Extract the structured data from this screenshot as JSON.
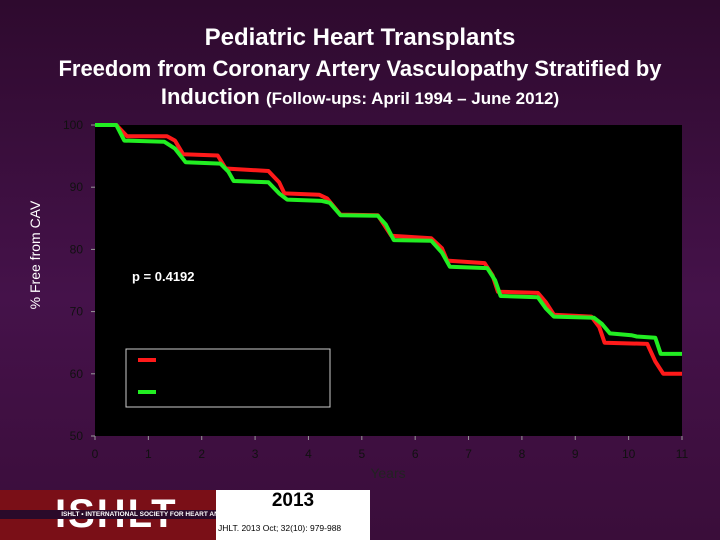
{
  "header": {
    "title": "Pediatric Heart Transplants",
    "subtitle_line1": "Freedom from Coronary Artery Vasculopathy Stratified by",
    "subtitle_line2_main": "Induction",
    "subtitle_line2_small": "(Follow-ups: April 1994 – June 2012)"
  },
  "chart_data": {
    "type": "line",
    "title": "",
    "xlabel": "Years",
    "ylabel": "% Free from CAV",
    "xlim": [
      0,
      11
    ],
    "ylim": [
      50,
      100
    ],
    "x_ticks": [
      "0",
      "1",
      "2",
      "3",
      "4",
      "5",
      "6",
      "7",
      "8",
      "9",
      "10",
      "11"
    ],
    "y_ticks": [
      "50",
      "60",
      "70",
      "80",
      "90",
      "100"
    ],
    "annotation": "p = 0.4192",
    "legend_position": "center-left",
    "grid": false,
    "series": [
      {
        "color": "#ff1a1a",
        "points": [
          [
            0,
            100
          ],
          [
            0.4,
            100
          ],
          [
            0.6,
            98.2
          ],
          [
            1.35,
            98.2
          ],
          [
            1.5,
            97.5
          ],
          [
            1.65,
            95.3
          ],
          [
            2.3,
            95.1
          ],
          [
            2.45,
            93
          ],
          [
            3.25,
            92.6
          ],
          [
            3.45,
            90.8
          ],
          [
            3.55,
            89
          ],
          [
            4.2,
            88.8
          ],
          [
            4.35,
            88.2
          ],
          [
            4.6,
            85.6
          ],
          [
            5.3,
            85.5
          ],
          [
            5.55,
            82.2
          ],
          [
            6.3,
            81.8
          ],
          [
            6.5,
            80.2
          ],
          [
            6.6,
            78.2
          ],
          [
            7.3,
            77.8
          ],
          [
            7.45,
            75.8
          ],
          [
            7.55,
            73.2
          ],
          [
            8.3,
            73
          ],
          [
            8.45,
            71.5
          ],
          [
            8.6,
            69.5
          ],
          [
            9.3,
            69.2
          ],
          [
            9.45,
            67.5
          ],
          [
            9.55,
            65
          ],
          [
            10.35,
            64.8
          ],
          [
            10.5,
            62
          ],
          [
            10.65,
            60
          ],
          [
            11,
            60
          ]
        ]
      },
      {
        "color": "#22ee22",
        "points": [
          [
            0,
            100
          ],
          [
            0.4,
            100
          ],
          [
            0.55,
            97.5
          ],
          [
            1.3,
            97.3
          ],
          [
            1.5,
            96.2
          ],
          [
            1.7,
            94
          ],
          [
            2.35,
            93.8
          ],
          [
            2.5,
            92.5
          ],
          [
            2.6,
            91
          ],
          [
            3.25,
            90.8
          ],
          [
            3.45,
            89
          ],
          [
            3.6,
            88
          ],
          [
            4.25,
            87.8
          ],
          [
            4.4,
            87.5
          ],
          [
            4.6,
            85.5
          ],
          [
            5.3,
            85.4
          ],
          [
            5.45,
            84
          ],
          [
            5.6,
            81.5
          ],
          [
            6.3,
            81.4
          ],
          [
            6.5,
            79.5
          ],
          [
            6.65,
            77.2
          ],
          [
            7.35,
            77
          ],
          [
            7.5,
            75
          ],
          [
            7.6,
            72.5
          ],
          [
            8.3,
            72.3
          ],
          [
            8.45,
            70.5
          ],
          [
            8.6,
            69.2
          ],
          [
            9.35,
            69
          ],
          [
            9.5,
            68
          ],
          [
            9.65,
            66.5
          ],
          [
            10.05,
            66.2
          ],
          [
            10.15,
            66
          ],
          [
            10.5,
            65.8
          ],
          [
            10.6,
            63.2
          ],
          [
            11,
            63.2
          ]
        ]
      }
    ]
  },
  "footer": {
    "logo": "ISHLT",
    "org": "ISHLT • INTERNATIONAL SOCIETY FOR HEART AND LUNG TRANSPLANTATION",
    "year": "2013",
    "citation": "JHLT. 2013 Oct; 32(10): 979-988"
  }
}
